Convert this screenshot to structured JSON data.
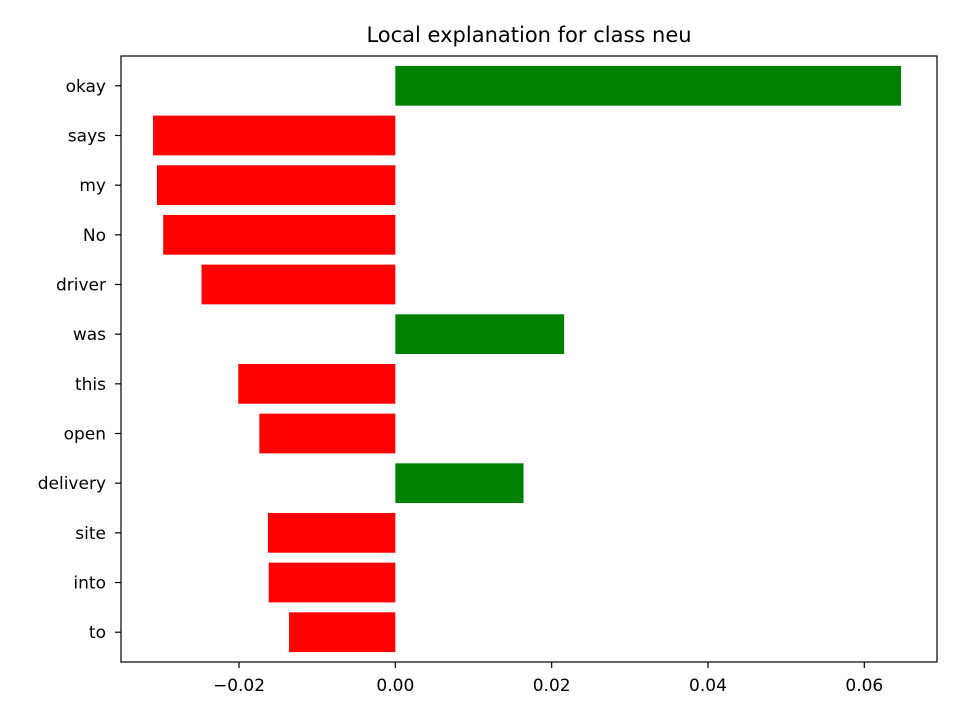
{
  "chart_data": {
    "type": "bar",
    "orientation": "horizontal",
    "title": "Local explanation for class neu",
    "xlabel": "",
    "ylabel": "",
    "xlim": [
      -0.0351,
      0.0693
    ],
    "xticks": [
      -0.02,
      0.0,
      0.02,
      0.04,
      0.06
    ],
    "xtick_labels": [
      "−0.02",
      "0.00",
      "0.02",
      "0.04",
      "0.06"
    ],
    "grid": false,
    "legend": "none",
    "colors": {
      "positive": "#008000",
      "negative": "#ff0000",
      "axis": "#000000",
      "background": "#ffffff"
    },
    "categories": [
      "okay",
      "says",
      "my",
      "No",
      "driver",
      "was",
      "this",
      "open",
      "delivery",
      "site",
      "into",
      "to"
    ],
    "values": [
      0.0647,
      -0.031,
      -0.0305,
      -0.0297,
      -0.0248,
      0.0216,
      -0.0201,
      -0.0174,
      0.0164,
      -0.0163,
      -0.0162,
      -0.0136
    ]
  }
}
